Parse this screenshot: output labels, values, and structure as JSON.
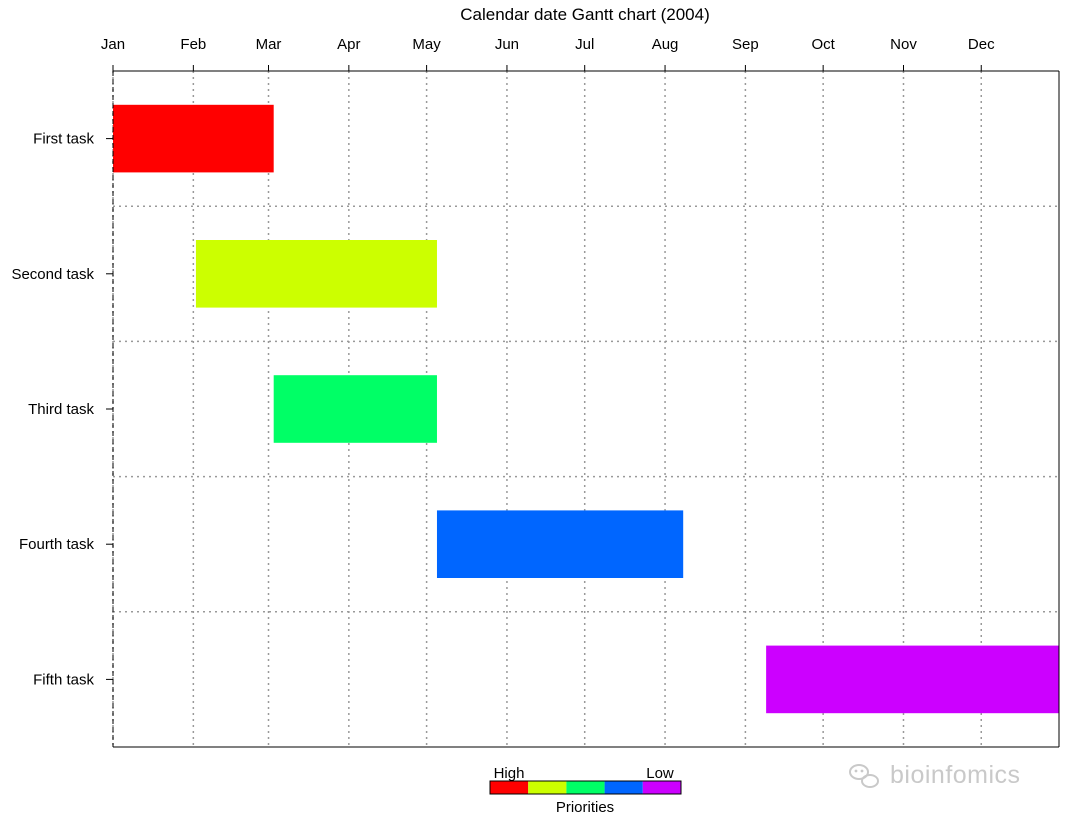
{
  "chart_data": {
    "type": "gantt",
    "title": "Calendar date Gantt chart (2004)",
    "x_axis": {
      "start": "2004-01-01",
      "end": "2004-12-31",
      "tick_labels": [
        "Jan",
        "Feb",
        "Mar",
        "Apr",
        "May",
        "Jun",
        "Jul",
        "Aug",
        "Sep",
        "Oct",
        "Nov",
        "Dec"
      ],
      "grid": true,
      "grid_style": "dotted"
    },
    "tasks": [
      {
        "label": "First task",
        "start": "2004-01-01",
        "end": "2004-03-03",
        "color": "#FF0000"
      },
      {
        "label": "Second task",
        "start": "2004-02-02",
        "end": "2004-05-05",
        "color": "#CCFF00"
      },
      {
        "label": "Third task",
        "start": "2004-03-03",
        "end": "2004-05-05",
        "color": "#00FF66"
      },
      {
        "label": "Fourth task",
        "start": "2004-05-05",
        "end": "2004-08-08",
        "color": "#0066FF"
      },
      {
        "label": "Fifth task",
        "start": "2004-09-09",
        "end": "2004-12-31",
        "color": "#CC00FF"
      }
    ],
    "legend": {
      "title": "Priorities",
      "left_label": "High",
      "right_label": "Low",
      "colors": [
        "#FF0000",
        "#CCFF00",
        "#00FF66",
        "#0066FF",
        "#CC00FF"
      ],
      "placement": "bottom-center"
    },
    "watermark": "bioinfomics"
  }
}
